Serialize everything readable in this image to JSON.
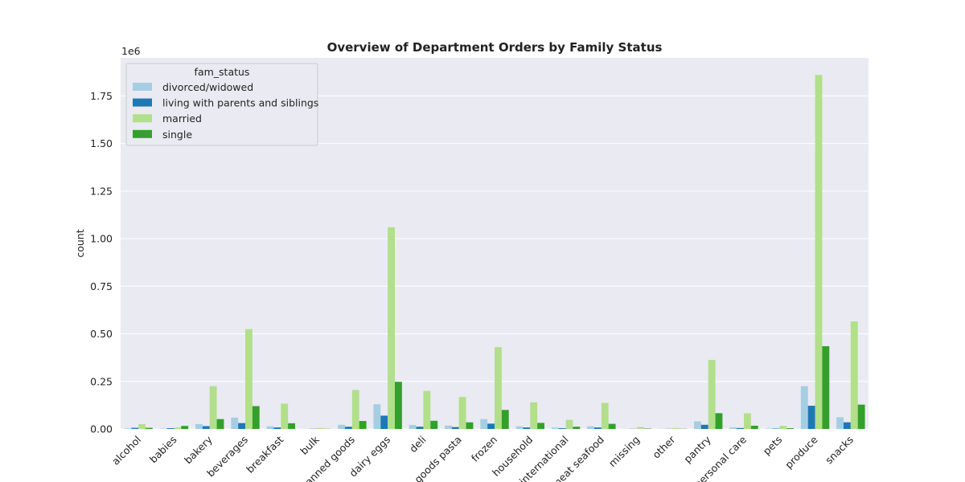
{
  "chart_data": {
    "type": "bar",
    "title": "Overview of Department Orders by Family Status",
    "xlabel": "",
    "ylabel": "count",
    "offset_label": "1e6",
    "ylim": [
      0,
      1.95
    ],
    "yticks": [
      "0.00",
      "0.25",
      "0.50",
      "0.75",
      "1.00",
      "1.25",
      "1.50",
      "1.75"
    ],
    "grid": true,
    "legend_position": "top-left",
    "legend_title": "fam_status",
    "categories": [
      "alcohol",
      "babies",
      "bakery",
      "beverages",
      "breakfast",
      "bulk",
      "canned goods",
      "dairy eggs",
      "deli",
      "dry goods pasta",
      "frozen",
      "household",
      "international",
      "meat seafood",
      "missing",
      "other",
      "pantry",
      "personal care",
      "pets",
      "produce",
      "snacks"
    ],
    "series": [
      {
        "name": "divorced/widowed",
        "color": "#a6cee3",
        "values": [
          0.003,
          0.002,
          0.026,
          0.06,
          0.014,
          0.001,
          0.022,
          0.13,
          0.021,
          0.018,
          0.052,
          0.014,
          0.007,
          0.014,
          0.001,
          0.001,
          0.04,
          0.009,
          0.002,
          0.225,
          0.062
        ]
      },
      {
        "name": "living with parents and siblings",
        "color": "#1f78b4",
        "values": [
          0.006,
          0.004,
          0.015,
          0.031,
          0.008,
          0.001,
          0.012,
          0.07,
          0.012,
          0.01,
          0.028,
          0.008,
          0.004,
          0.008,
          0.001,
          0.001,
          0.022,
          0.005,
          0.002,
          0.122,
          0.035
        ]
      },
      {
        "name": "married",
        "color": "#b2df8a",
        "values": [
          0.025,
          0.008,
          0.225,
          0.525,
          0.133,
          0.005,
          0.205,
          1.06,
          0.2,
          0.168,
          0.43,
          0.14,
          0.048,
          0.137,
          0.01,
          0.005,
          0.363,
          0.082,
          0.016,
          1.86,
          0.565
        ]
      },
      {
        "name": "single",
        "color": "#33a02c",
        "values": [
          0.006,
          0.016,
          0.052,
          0.12,
          0.03,
          0.001,
          0.042,
          0.248,
          0.043,
          0.035,
          0.1,
          0.032,
          0.012,
          0.027,
          0.002,
          0.001,
          0.083,
          0.017,
          0.004,
          0.435,
          0.128
        ]
      }
    ]
  }
}
